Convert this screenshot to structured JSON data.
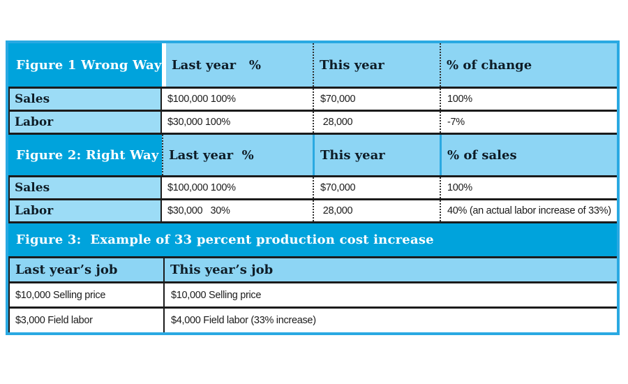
{
  "colors": {
    "cyan": "#00a3dc",
    "border_cyan": "#2aa9e2",
    "light_blue": "#8dd5f4",
    "label_blue": "#9cdcf6",
    "ink": "#1b1b1b",
    "slab_ink": "#0e1c26"
  },
  "chart_data": [
    {
      "type": "table",
      "title": "Figure 1 Wrong Way",
      "columns": [
        "",
        "Last year   %",
        "This year",
        "% of change"
      ],
      "rows": [
        [
          "Sales",
          "$100,000 100%",
          "$70,000",
          "100%"
        ],
        [
          "Labor",
          "$30,000 100%",
          " 28,000",
          "-7%"
        ]
      ]
    },
    {
      "type": "table",
      "title": "Figure 2: Right Way",
      "columns": [
        "",
        "Last year  %",
        "This year",
        "% of sales"
      ],
      "rows": [
        [
          "Sales",
          "$100,000 100%",
          "$70,000",
          "100%"
        ],
        [
          "Labor",
          "$30,000   30%",
          " 28,000",
          "40% (an actual labor increase of 33%)"
        ]
      ]
    },
    {
      "type": "table",
      "title": "Figure 3:  Example of 33 percent production cost increase",
      "columns": [
        "Last year’s job",
        "This year’s job"
      ],
      "rows": [
        [
          "$10,000 Selling price",
          "$10,000 Selling price"
        ],
        [
          "$3,000 Field labor",
          "$4,000 Field labor (33% increase)"
        ]
      ]
    }
  ]
}
